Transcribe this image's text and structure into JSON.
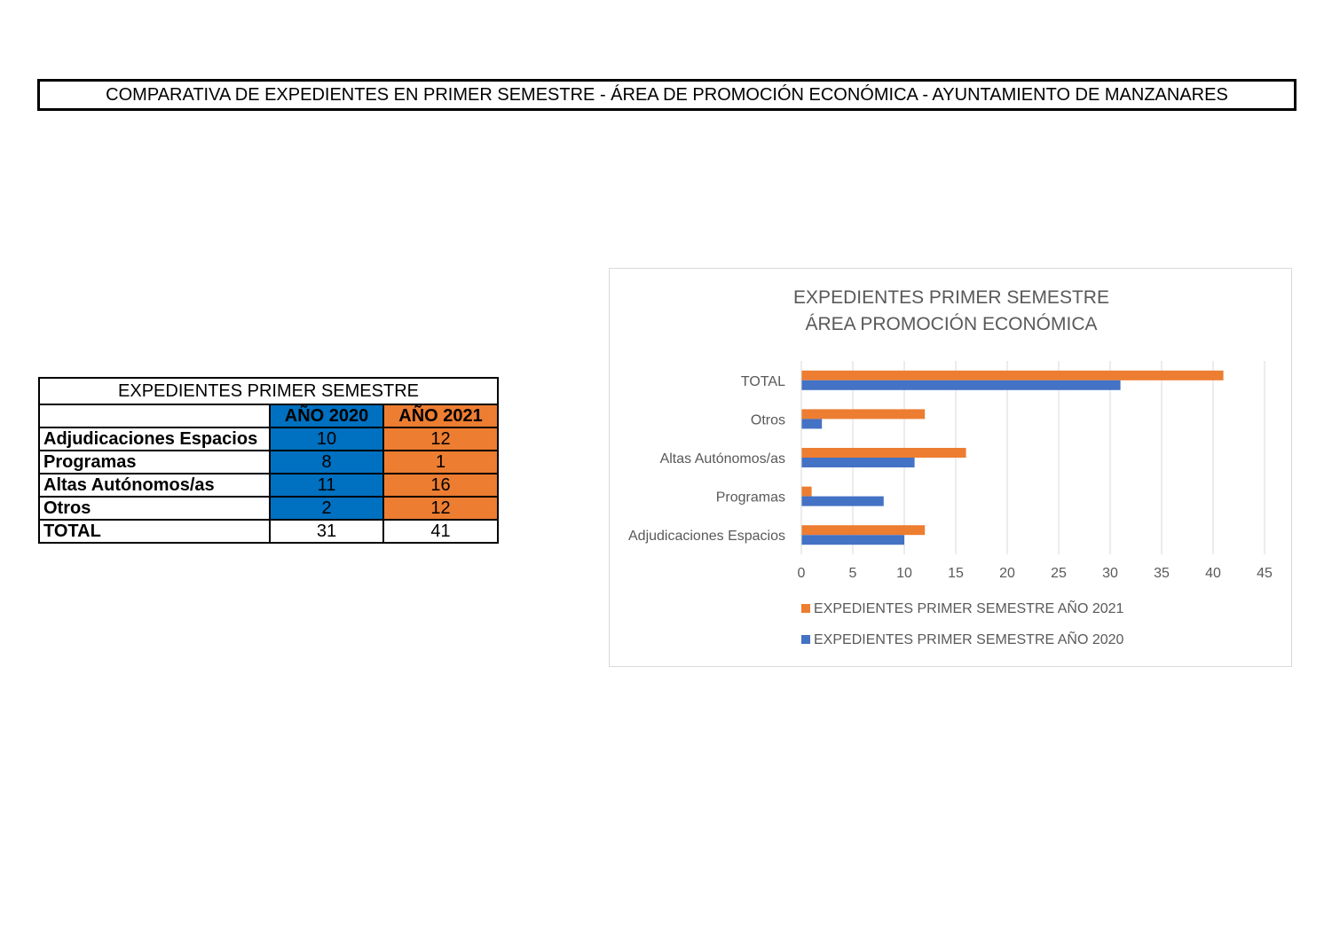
{
  "page": {
    "title": "COMPARATIVA DE EXPEDIENTES EN  PRIMER SEMESTRE - ÁREA DE PROMOCIÓN ECONÓMICA - AYUNTAMIENTO DE MANZANARES"
  },
  "table": {
    "caption": "EXPEDIENTES PRIMER SEMESTRE",
    "header_2020": "AÑO 2020",
    "header_2021": "AÑO 2021",
    "rows": [
      {
        "label": "Adjudicaciones Espacios",
        "v2020": "10",
        "v2021": "12"
      },
      {
        "label": "Programas",
        "v2020": "8",
        "v2021": "1"
      },
      {
        "label": "Altas Autónomos/as",
        "v2020": "11",
        "v2021": "16"
      },
      {
        "label": "Otros",
        "v2020": "2",
        "v2021": "12"
      },
      {
        "label": "TOTAL",
        "v2020": "31",
        "v2021": "41"
      }
    ],
    "colors": {
      "c2020": "#0070c0",
      "c2021": "#ed7d31"
    }
  },
  "chart_data": {
    "type": "bar",
    "orientation": "horizontal",
    "title_line1": "EXPEDIENTES PRIMER SEMESTRE",
    "title_line2": "ÁREA PROMOCIÓN ECONÓMICA",
    "categories": [
      "Adjudicaciones Espacios",
      "Programas",
      "Altas Autónomos/as",
      "Otros",
      "TOTAL"
    ],
    "series": [
      {
        "name": "EXPEDIENTES PRIMER SEMESTRE AÑO 2020",
        "values": [
          10,
          8,
          11,
          2,
          31
        ],
        "color": "#4472c4"
      },
      {
        "name": "EXPEDIENTES PRIMER SEMESTRE AÑO 2021",
        "values": [
          12,
          1,
          16,
          12,
          41
        ],
        "color": "#ed7d31"
      }
    ],
    "xlim": [
      0,
      45
    ],
    "xticks": [
      0,
      5,
      10,
      15,
      20,
      25,
      30,
      35,
      40,
      45
    ],
    "grid": true,
    "legend_position": "bottom"
  }
}
